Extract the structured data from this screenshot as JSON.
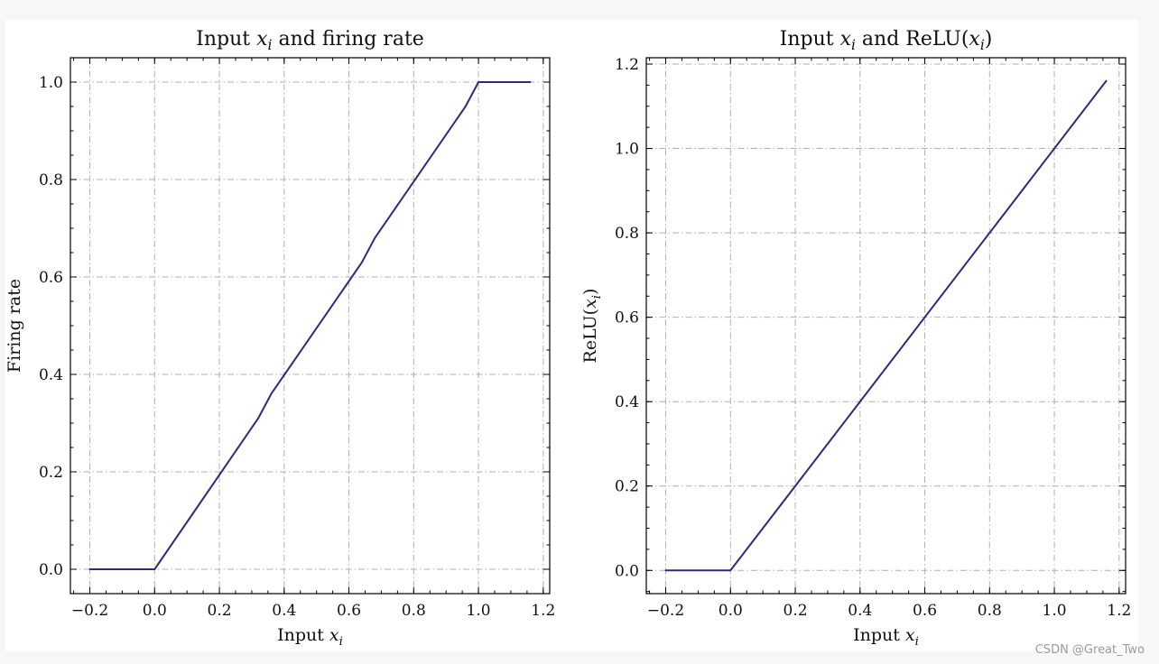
{
  "watermark": "CSDN @Great_Two",
  "colors": {
    "line": "#2e2a7f",
    "grid": "#b0b0b0"
  },
  "chart_data": [
    {
      "type": "line",
      "title": "Input x_i and firing rate",
      "title_parts": {
        "pre": "Input ",
        "var": "x",
        "sub": "i",
        "post": " and firing rate"
      },
      "xlabel_parts": {
        "pre": "Input ",
        "var": "x",
        "sub": "i",
        "post": ""
      },
      "ylabel": "Firing rate",
      "xlim": [
        -0.26,
        1.22
      ],
      "ylim": [
        -0.05,
        1.05
      ],
      "xticks": [
        -0.2,
        0.0,
        0.2,
        0.4,
        0.6,
        0.8,
        1.0,
        1.2
      ],
      "xtick_labels": [
        "−0.2",
        "0.0",
        "0.2",
        "0.4",
        "0.6",
        "0.8",
        "1.0",
        "1.2"
      ],
      "yticks": [
        0.0,
        0.2,
        0.4,
        0.6,
        0.8,
        1.0
      ],
      "ytick_labels": [
        "0.0",
        "0.2",
        "0.4",
        "0.6",
        "0.8",
        "1.0"
      ],
      "grid": true,
      "series": [
        {
          "x": [
            -0.2,
            0.0,
            0.32,
            0.36,
            0.64,
            0.68,
            0.96,
            1.0,
            1.16
          ],
          "y": [
            0.0,
            0.0,
            0.31,
            0.36,
            0.63,
            0.68,
            0.95,
            1.0,
            1.0
          ]
        }
      ]
    },
    {
      "type": "line",
      "title": "Input x_i and ReLU(x_i)",
      "title_parts": {
        "pre": "Input ",
        "var": "x",
        "sub": "i",
        "post": " and ReLU(",
        "var2": "x",
        "sub2": "i",
        "post2": ")"
      },
      "xlabel_parts": {
        "pre": "Input ",
        "var": "x",
        "sub": "i",
        "post": ""
      },
      "ylabel_parts": {
        "pre": "ReLU(",
        "var": "x",
        "sub": "i",
        "post": ")"
      },
      "xlim": [
        -0.26,
        1.22
      ],
      "ylim": [
        -0.055,
        1.215
      ],
      "xticks": [
        -0.2,
        0.0,
        0.2,
        0.4,
        0.6,
        0.8,
        1.0,
        1.2
      ],
      "xtick_labels": [
        "−0.2",
        "0.0",
        "0.2",
        "0.4",
        "0.6",
        "0.8",
        "1.0",
        "1.2"
      ],
      "yticks": [
        0.0,
        0.2,
        0.4,
        0.6,
        0.8,
        1.0,
        1.2
      ],
      "ytick_labels": [
        "0.0",
        "0.2",
        "0.4",
        "0.6",
        "0.8",
        "1.0",
        "1.2"
      ],
      "grid": true,
      "series": [
        {
          "x": [
            -0.2,
            0.0,
            1.16
          ],
          "y": [
            0.0,
            0.0,
            1.16
          ]
        }
      ]
    }
  ]
}
